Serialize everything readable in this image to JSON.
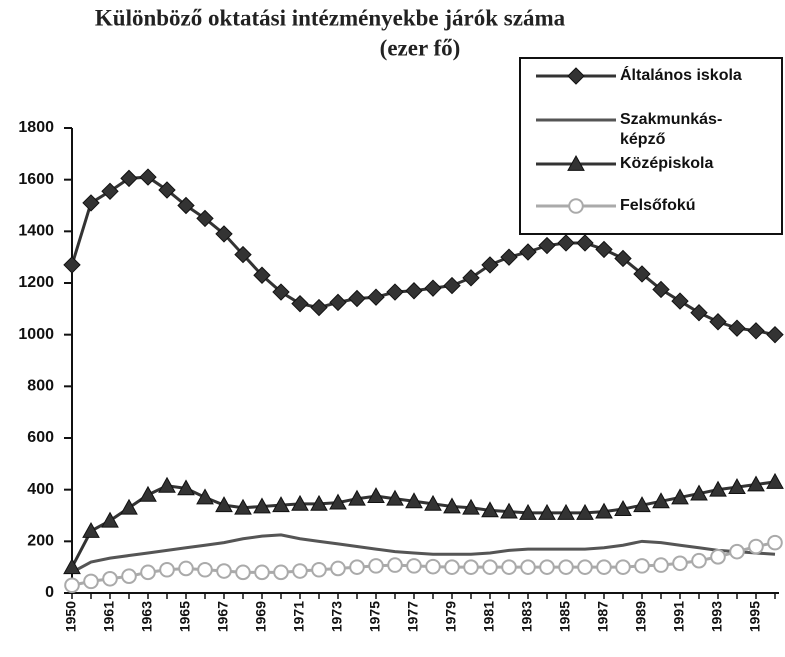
{
  "chart_data": {
    "type": "line",
    "title": "Különböző oktatási intézményekbe járók száma",
    "subtitle": "(ezer fő)",
    "categories": [
      "1950",
      null,
      "1961",
      null,
      "1963",
      null,
      "1965",
      null,
      "1967",
      null,
      "1969",
      null,
      "1971",
      null,
      "1973",
      null,
      "1975",
      null,
      "1977",
      null,
      "1979",
      null,
      "1981",
      null,
      "1983",
      null,
      "1985",
      null,
      "1987",
      null,
      "1989",
      null,
      "1991",
      null,
      "1993",
      null,
      "1995",
      null
    ],
    "series": [
      {
        "name": "Általános iskola",
        "color": "#333333",
        "marker": "diamond",
        "values": [
          1270,
          1510,
          1555,
          1605,
          1610,
          1560,
          1500,
          1450,
          1390,
          1310,
          1230,
          1165,
          1120,
          1105,
          1125,
          1140,
          1145,
          1165,
          1170,
          1180,
          1190,
          1220,
          1270,
          1300,
          1320,
          1345,
          1355,
          1355,
          1330,
          1295,
          1235,
          1175,
          1130,
          1085,
          1050,
          1025,
          1015,
          1000
        ]
      },
      {
        "name": "Szakmunkás-képző",
        "color": "#555555",
        "marker": "none",
        "values": [
          80,
          120,
          135,
          145,
          155,
          165,
          175,
          185,
          195,
          210,
          220,
          225,
          210,
          200,
          190,
          180,
          170,
          160,
          155,
          150,
          150,
          150,
          155,
          165,
          170,
          170,
          170,
          170,
          175,
          185,
          200,
          195,
          185,
          175,
          165,
          160,
          155,
          150
        ]
      },
      {
        "name": "Középiskola",
        "color": "#333333",
        "marker": "triangle",
        "values": [
          100,
          240,
          280,
          330,
          380,
          415,
          405,
          370,
          340,
          330,
          335,
          340,
          345,
          345,
          350,
          365,
          375,
          365,
          355,
          345,
          335,
          330,
          320,
          315,
          310,
          310,
          310,
          310,
          315,
          325,
          340,
          355,
          370,
          385,
          400,
          410,
          420,
          430
        ]
      },
      {
        "name": "Felsőfokú",
        "color": "#aaaaaa",
        "marker": "circle",
        "values": [
          30,
          45,
          55,
          65,
          80,
          90,
          95,
          90,
          85,
          80,
          80,
          80,
          85,
          90,
          95,
          100,
          105,
          108,
          105,
          102,
          100,
          100,
          100,
          100,
          100,
          100,
          100,
          100,
          100,
          100,
          105,
          108,
          115,
          125,
          140,
          160,
          180,
          195
        ]
      }
    ],
    "ylim": [
      0,
      1800
    ],
    "yticks": [
      0,
      200,
      400,
      600,
      800,
      1000,
      1200,
      1400,
      1600,
      1800
    ],
    "legend": "top-right"
  }
}
